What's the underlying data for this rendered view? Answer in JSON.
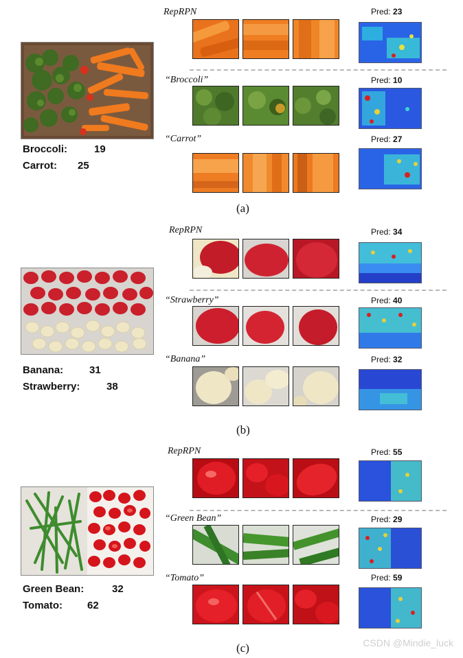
{
  "panels": [
    {
      "caption": "(a)",
      "gt": [
        {
          "label": "Broccoli:",
          "count": "19"
        },
        {
          "label": "Carrot:",
          "count": "25"
        }
      ],
      "rows": [
        {
          "label": "RepRPN",
          "pred_prefix": "Pred:",
          "pred": "23"
        },
        {
          "label": "“Broccoli”",
          "pred_prefix": "Pred:",
          "pred": "10"
        },
        {
          "label": "“Carrot”",
          "pred_prefix": "Pred:",
          "pred": "27"
        }
      ]
    },
    {
      "caption": "(b)",
      "gt": [
        {
          "label": "Banana:",
          "count": "31"
        },
        {
          "label": "Strawberry:",
          "count": "38"
        }
      ],
      "rows": [
        {
          "label": "RepRPN",
          "pred_prefix": "Pred:",
          "pred": "34"
        },
        {
          "label": "“Strawberry”",
          "pred_prefix": "Pred:",
          "pred": "40"
        },
        {
          "label": "“Banana”",
          "pred_prefix": "Pred:",
          "pred": "32"
        }
      ]
    },
    {
      "caption": "(c)",
      "gt": [
        {
          "label": "Green Bean:",
          "count": "32"
        },
        {
          "label": "Tomato:",
          "count": "62"
        }
      ],
      "rows": [
        {
          "label": "RepRPN",
          "pred_prefix": "Pred:",
          "pred": "55"
        },
        {
          "label": "“Green Bean”",
          "pred_prefix": "Pred:",
          "pred": "29"
        },
        {
          "label": "“Tomato”",
          "pred_prefix": "Pred:",
          "pred": "59"
        }
      ]
    }
  ],
  "watermark": "CSDN @Mindie_luck",
  "colors": {
    "carrot": "#f07a1e",
    "broccoli": "#3f6b22",
    "strawberry": "#c9202c",
    "banana": "#efe6c6",
    "greenbean": "#3e8c2e",
    "tomato": "#d5151c",
    "heat_low": "#1d3fd0",
    "heat_mid": "#2fd0d8",
    "heat_high": "#d82020"
  }
}
